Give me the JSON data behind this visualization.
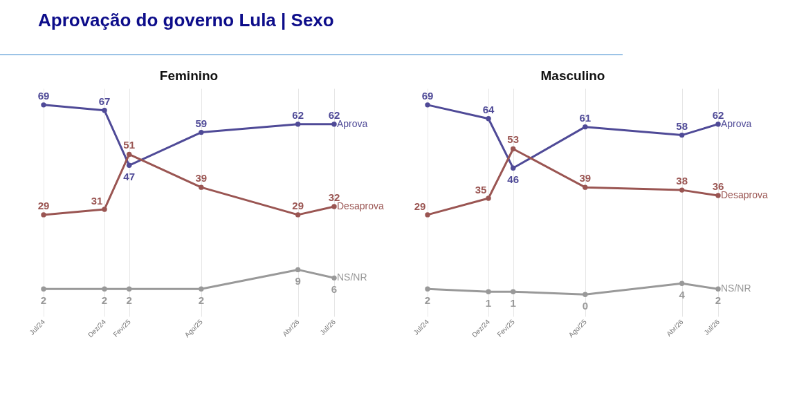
{
  "chart_data": [
    {
      "type": "other",
      "title": "Aprovação do governo Lula | Sexo"
    },
    {
      "type": "line",
      "title": "Feminino",
      "x": [
        "2024-07",
        "2024-12",
        "2025-02",
        "2025-08",
        "2026-04",
        "2026-07"
      ],
      "xlim": [
        "2024-07",
        "2026-07"
      ],
      "xticks": [
        {
          "value": "2024-07",
          "label": "Jul/24"
        },
        {
          "value": "2024-12",
          "label": "Dez/24"
        },
        {
          "value": "2025-02",
          "label": "Fev/25"
        },
        {
          "value": "2025-08",
          "label": "Ago/25"
        },
        {
          "value": "2026-04",
          "label": "Abr/26"
        },
        {
          "value": "2026-07",
          "label": "Jul/26"
        }
      ],
      "ylim": [
        -8,
        75
      ],
      "tick_labels": "x",
      "grid": "x",
      "legend": false,
      "marker": "circle",
      "line_style": "solid",
      "data_labels": true,
      "series": [
        {
          "name": "Aprova",
          "color": "#4f4a97",
          "values": [
            69,
            67,
            47,
            59,
            62,
            62
          ]
        },
        {
          "name": "Desaprova",
          "color": "#9a5552",
          "values": [
            29,
            31,
            51,
            39,
            29,
            32
          ]
        },
        {
          "name": "NS/NR",
          "color": "#999999",
          "values": [
            2,
            2,
            2,
            2,
            9,
            6
          ]
        }
      ]
    },
    {
      "type": "line",
      "title": "Masculino",
      "x": [
        "2024-07",
        "2024-12",
        "2025-02",
        "2025-08",
        "2026-04",
        "2026-07"
      ],
      "xlim": [
        "2024-07",
        "2026-07"
      ],
      "xticks": [
        {
          "value": "2024-07",
          "label": "Jul/24"
        },
        {
          "value": "2024-12",
          "label": "Dez/24"
        },
        {
          "value": "2025-02",
          "label": "Fev/25"
        },
        {
          "value": "2025-08",
          "label": "Ago/25"
        },
        {
          "value": "2026-04",
          "label": "Abr/26"
        },
        {
          "value": "2026-07",
          "label": "Jul/26"
        }
      ],
      "ylim": [
        -8,
        75
      ],
      "tick_labels": "x",
      "grid": "x",
      "legend": false,
      "marker": "circle",
      "line_style": "solid",
      "data_labels": true,
      "series": [
        {
          "name": "Aprova",
          "color": "#4f4a97",
          "values": [
            69,
            64,
            46,
            61,
            58,
            62
          ]
        },
        {
          "name": "Desaprova",
          "color": "#9a5552",
          "values": [
            29,
            35,
            53,
            39,
            38,
            36
          ]
        },
        {
          "name": "NS/NR",
          "color": "#999999",
          "values": [
            2,
            1,
            1,
            0,
            4,
            2
          ]
        }
      ]
    }
  ]
}
